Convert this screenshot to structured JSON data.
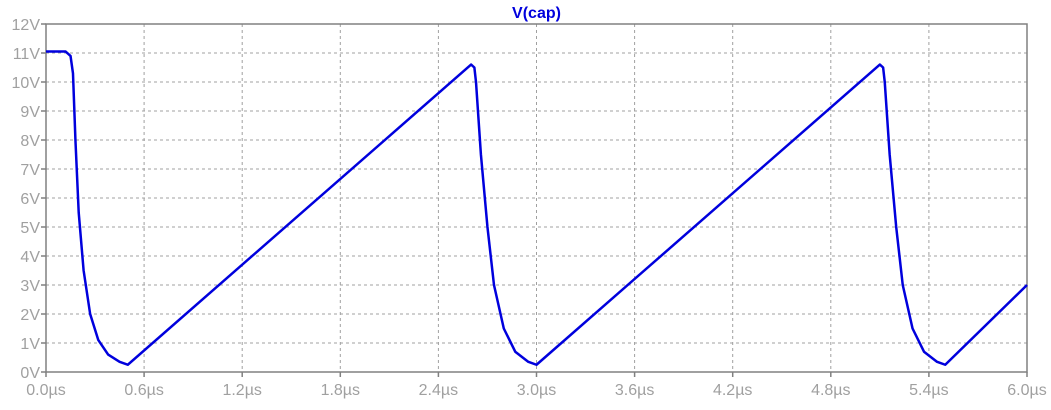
{
  "chart_data": {
    "type": "line",
    "title": "V(cap)",
    "xlabel": "",
    "ylabel": "",
    "xlim": [
      0.0,
      6.0
    ],
    "ylim": [
      0,
      12
    ],
    "grid": true,
    "x_tick_labels": [
      "0.0µs",
      "0.6µs",
      "1.2µs",
      "1.8µs",
      "2.4µs",
      "3.0µs",
      "3.6µs",
      "4.2µs",
      "4.8µs",
      "5.4µs",
      "6.0µs"
    ],
    "y_tick_labels": [
      "0V",
      "1V",
      "2V",
      "3V",
      "4V",
      "5V",
      "6V",
      "7V",
      "8V",
      "9V",
      "10V",
      "11V",
      "12V"
    ],
    "colors": {
      "series": "#0000dd",
      "title": "#0000dd",
      "frame": "#808080",
      "grid": "#a0a0a0",
      "tick_label": "#a0a0a0"
    },
    "series": [
      {
        "x": [
          0.0,
          0.12,
          0.15,
          0.165,
          0.18,
          0.2,
          0.23,
          0.27,
          0.32,
          0.38,
          0.45,
          0.5,
          2.6,
          2.62,
          2.63,
          2.66,
          2.7,
          2.74,
          2.8,
          2.87,
          2.95,
          3.0,
          5.1,
          5.12,
          5.13,
          5.16,
          5.2,
          5.24,
          5.3,
          5.37,
          5.45,
          5.5,
          6.0
        ],
        "y": [
          11.05,
          11.05,
          10.9,
          10.3,
          8.0,
          5.5,
          3.5,
          2.0,
          1.1,
          0.6,
          0.35,
          0.25,
          10.6,
          10.5,
          10.0,
          7.5,
          5.0,
          3.0,
          1.5,
          0.7,
          0.35,
          0.25,
          10.6,
          10.5,
          10.0,
          7.5,
          5.0,
          3.0,
          1.5,
          0.7,
          0.35,
          0.25,
          3.0
        ]
      }
    ]
  }
}
